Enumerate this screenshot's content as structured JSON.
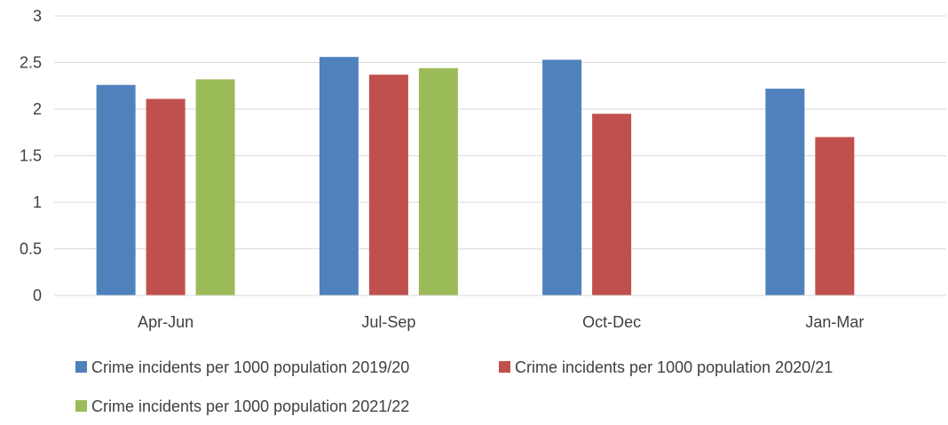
{
  "chart_data": {
    "type": "bar",
    "title": "",
    "xlabel": "",
    "ylabel": "",
    "categories": [
      "Apr-Jun",
      "Jul-Sep",
      "Oct-Dec",
      "Jan-Mar"
    ],
    "yticks": [
      "0",
      "0.5",
      "1",
      "1.5",
      "2",
      "2.5",
      "3"
    ],
    "ylim": [
      0,
      3
    ],
    "grid": true,
    "legend_position": "bottom",
    "series": [
      {
        "name": "Crime incidents per 1000 population 2019/20",
        "color": "#4F81BD",
        "values": [
          2.26,
          2.56,
          2.53,
          2.22
        ]
      },
      {
        "name": "Crime incidents per 1000 population 2020/21",
        "color": "#C0504D",
        "values": [
          2.11,
          2.37,
          1.95,
          1.7
        ]
      },
      {
        "name": "Crime incidents per 1000 population 2021/22",
        "color": "#9BBB59",
        "values": [
          2.32,
          2.44,
          null,
          null
        ]
      }
    ]
  }
}
